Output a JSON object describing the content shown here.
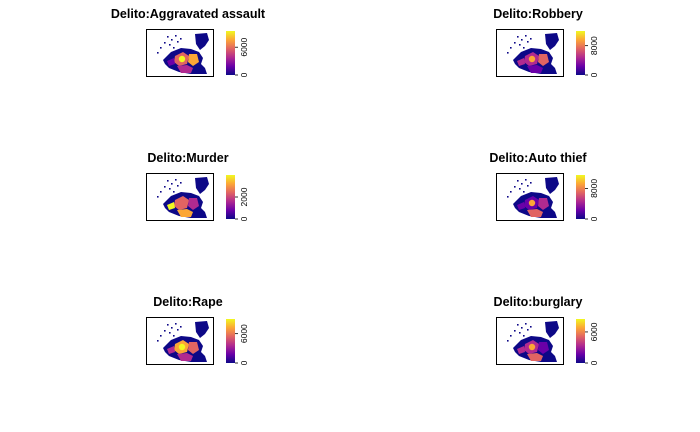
{
  "palette": [
    "#0d0887",
    "#6a00a8",
    "#b12a90",
    "#e16462",
    "#fca636",
    "#f0f921"
  ],
  "chart_data": [
    {
      "type": "heatmap",
      "title": "Delito:Aggravated assault",
      "legend_ticks": [
        "0",
        "6000"
      ],
      "legend_range": [
        0,
        9500
      ],
      "legend_tick_values": [
        0,
        6000
      ]
    },
    {
      "type": "heatmap",
      "title": "Delito:Robbery",
      "legend_ticks": [
        "0",
        "8000"
      ],
      "legend_range": [
        0,
        12000
      ],
      "legend_tick_values": [
        0,
        8000
      ]
    },
    {
      "type": "heatmap",
      "title": "Delito:Murder",
      "legend_ticks": [
        "0",
        "2000"
      ],
      "legend_range": [
        0,
        4000
      ],
      "legend_tick_values": [
        0,
        2000
      ]
    },
    {
      "type": "heatmap",
      "title": "Delito:Auto thief",
      "legend_ticks": [
        "0",
        "8000"
      ],
      "legend_range": [
        0,
        11500
      ],
      "legend_tick_values": [
        0,
        8000
      ]
    },
    {
      "type": "heatmap",
      "title": "Delito:Rape",
      "legend_ticks": [
        "0",
        "6000"
      ],
      "legend_range": [
        0,
        9000
      ],
      "legend_tick_values": [
        0,
        6000
      ]
    },
    {
      "type": "heatmap",
      "title": "Delito:burglary",
      "legend_ticks": [
        "0",
        "6000"
      ],
      "legend_range": [
        0,
        8500
      ],
      "legend_tick_values": [
        0,
        6000
      ]
    }
  ]
}
